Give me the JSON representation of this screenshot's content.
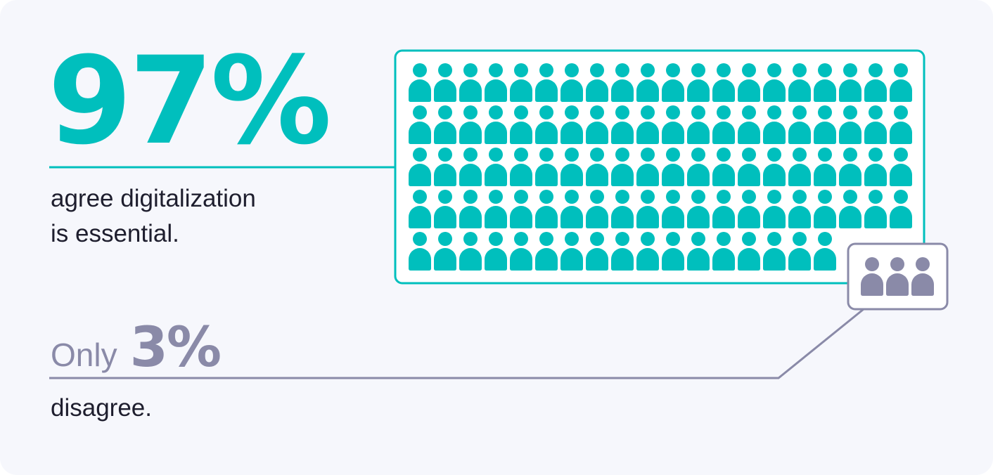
{
  "headline": {
    "value": "97%",
    "text_line1": "agree digitalization",
    "text_line2": "is essential."
  },
  "secondary": {
    "prefix": "Only",
    "value": "3%",
    "text": "disagree."
  },
  "colors": {
    "agree": "#00bfbd",
    "disagree": "#8a8aa8",
    "background": "#f6f7fc"
  },
  "chart_data": {
    "type": "pictograph",
    "icon": "person-icon",
    "categories": [
      "agree",
      "disagree"
    ],
    "values": [
      97,
      3
    ],
    "unit": "percent",
    "icons_per_row": 20
  }
}
